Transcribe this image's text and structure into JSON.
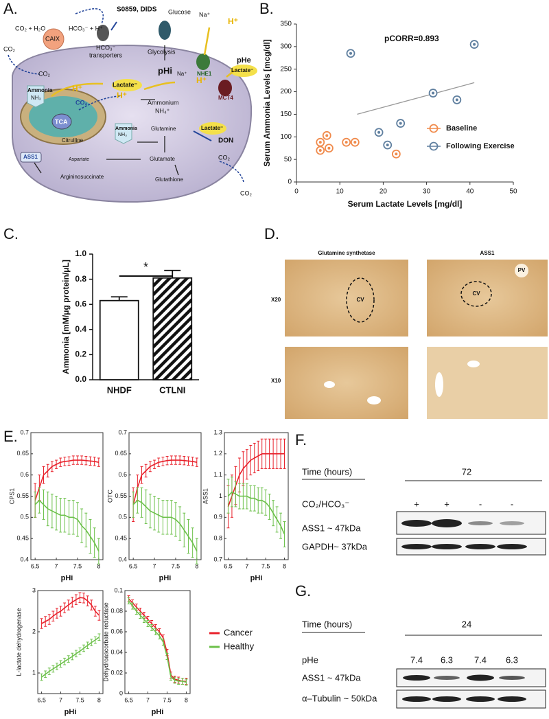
{
  "panel_a": {
    "letter": "A.",
    "labels": [
      "CO₂ + H₂O",
      "HCO₃⁻ + H⁺",
      "S0859, DIDS",
      "HCO₃⁻",
      "transporters",
      "Glucose",
      "Na⁺",
      "H⁺",
      "pHe",
      "CAIX",
      "CO₂",
      "CO₂",
      "Glycolysis",
      "Na⁺",
      "NHE1",
      "pHi",
      "Lactate⁻",
      "H⁺",
      "Ammonia",
      "NH₃",
      "H⁺",
      "Lactate⁻",
      "MCT4",
      "CO₂",
      "H⁺",
      "Ammonium",
      "NH₄⁺",
      "TCA",
      "Citrulline",
      "Ammonia",
      "NH₃",
      "Glutamine",
      "Lactate⁻",
      "DON",
      "ASS1",
      "Aspartate",
      "Glutamate",
      "Argininosuccinate",
      "Glutathione",
      "CO₂",
      "CO₂"
    ]
  },
  "panel_b": {
    "letter": "B.",
    "chart": {
      "type": "scatter",
      "xlabel": "Serum Lactate Levels [mg/dl]",
      "ylabel": "Serum Ammonia Levels [mcg/dl]",
      "annotation": "pCORR=0.893",
      "xlim": [
        0,
        50
      ],
      "xticks": [
        0,
        10,
        20,
        30,
        40,
        50
      ],
      "ylim": [
        0,
        350
      ],
      "yticks": [
        0,
        50,
        100,
        150,
        200,
        250,
        300,
        350
      ],
      "series": [
        {
          "name": "Baseline",
          "color": "#f08a4b",
          "x": [
            5.5,
            5.5,
            7,
            7.5,
            11.5,
            13.5,
            23
          ],
          "values": [
            70,
            88,
            103,
            75,
            88,
            88,
            62
          ]
        },
        {
          "name": "Following Exercise",
          "color": "#5f7f9f",
          "x": [
            12.5,
            19,
            21,
            24,
            31.5,
            37,
            41
          ],
          "values": [
            285,
            110,
            82,
            130,
            197,
            182,
            305
          ]
        }
      ],
      "trendline": {
        "x": [
          14,
          41
        ],
        "values": [
          150,
          220
        ]
      }
    }
  },
  "panel_c": {
    "letter": "C.",
    "chart": {
      "type": "bar",
      "ylabel": "Ammonia [mM/μg protein/μL]",
      "categories": [
        "NHDF",
        "CTLNI"
      ],
      "values": [
        0.63,
        0.81
      ],
      "errors": [
        0.03,
        0.06
      ],
      "ylim": [
        0,
        1
      ],
      "yticks": [
        {
          "value": 0,
          "label": "0.0"
        },
        0.2,
        0.4,
        0.6,
        0.8,
        {
          "value": 1,
          "label": "1.0"
        }
      ],
      "significance": "*"
    }
  },
  "panel_d": {
    "letter": "D.",
    "column_headers": [
      "Glutamine synthetase",
      "ASS1"
    ],
    "row_labels": [
      "X20",
      "X10"
    ],
    "image_labels": [
      "CV",
      "CV",
      "PV"
    ]
  },
  "panel_e": {
    "letter": "E.",
    "legend": [
      {
        "name": "Cancer",
        "color": "#e8202a"
      },
      {
        "name": "Healthy",
        "color": "#6cc04a"
      }
    ],
    "charts": [
      {
        "type": "line",
        "ylabel": "CPS1",
        "xlabel": "pHi",
        "x": [
          6.5,
          6.6,
          6.7,
          6.8,
          6.9,
          7.0,
          7.1,
          7.2,
          7.3,
          7.4,
          7.5,
          7.6,
          7.7,
          7.8,
          7.9,
          8.0
        ],
        "xlim": [
          6.4,
          8.1
        ],
        "xticks": [
          6.5,
          7,
          7.5,
          8
        ],
        "ylim": [
          0.4,
          0.7
        ],
        "yticks": [
          0.4,
          0.45,
          0.5,
          0.55,
          0.6,
          0.65,
          0.7
        ],
        "series": [
          {
            "values": [
              0.54,
              0.57,
              0.6,
              0.61,
              0.62,
              0.625,
              0.63,
              0.632,
              0.633,
              0.635,
              0.635,
              0.635,
              0.634,
              0.633,
              0.632,
              0.63
            ],
            "errors": [
              0.04,
              0.03,
              0.02,
              0.015,
              0.012,
              0.01,
              0.01,
              0.01,
              0.01,
              0.01,
              0.01,
              0.01,
              0.01,
              0.01,
              0.01,
              0.01
            ]
          },
          {
            "values": [
              0.53,
              0.54,
              0.53,
              0.52,
              0.515,
              0.51,
              0.505,
              0.505,
              0.5,
              0.5,
              0.495,
              0.48,
              0.47,
              0.455,
              0.44,
              0.42
            ],
            "errors": [
              0.03,
              0.03,
              0.035,
              0.04,
              0.04,
              0.04,
              0.04,
              0.04,
              0.04,
              0.04,
              0.04,
              0.04,
              0.04,
              0.04,
              0.035,
              0.03
            ]
          }
        ]
      },
      {
        "type": "line",
        "ylabel": "OTC",
        "xlabel": "pHi",
        "x": [
          6.5,
          6.6,
          6.7,
          6.8,
          6.9,
          7.0,
          7.1,
          7.2,
          7.3,
          7.4,
          7.5,
          7.6,
          7.7,
          7.8,
          7.9,
          8.0
        ],
        "xlim": [
          6.4,
          8.1
        ],
        "xticks": [
          6.5,
          7,
          7.5,
          8
        ],
        "ylim": [
          0.4,
          0.7
        ],
        "yticks": [
          0.4,
          0.45,
          0.5,
          0.55,
          0.6,
          0.65,
          0.7
        ],
        "series": [
          {
            "values": [
              0.53,
              0.57,
              0.6,
              0.61,
              0.62,
              0.625,
              0.63,
              0.632,
              0.634,
              0.635,
              0.635,
              0.635,
              0.634,
              0.633,
              0.632,
              0.63
            ],
            "errors": [
              0.04,
              0.03,
              0.02,
              0.015,
              0.012,
              0.01,
              0.01,
              0.01,
              0.01,
              0.01,
              0.01,
              0.01,
              0.01,
              0.01,
              0.01,
              0.01
            ]
          },
          {
            "values": [
              0.53,
              0.54,
              0.535,
              0.525,
              0.515,
              0.51,
              0.505,
              0.5,
              0.5,
              0.5,
              0.495,
              0.485,
              0.47,
              0.455,
              0.44,
              0.42
            ],
            "errors": [
              0.03,
              0.03,
              0.035,
              0.04,
              0.04,
              0.04,
              0.04,
              0.04,
              0.04,
              0.04,
              0.04,
              0.04,
              0.04,
              0.04,
              0.035,
              0.03
            ]
          }
        ]
      },
      {
        "type": "line",
        "ylabel": "ASS1",
        "xlabel": "pHi",
        "x": [
          6.5,
          6.6,
          6.7,
          6.8,
          6.9,
          7.0,
          7.1,
          7.2,
          7.3,
          7.4,
          7.5,
          7.6,
          7.7,
          7.8,
          7.9,
          8.0
        ],
        "xlim": [
          6.4,
          8.1
        ],
        "xticks": [
          6.5,
          7,
          7.5,
          8
        ],
        "ylim": [
          0.7,
          1.3
        ],
        "yticks": [
          0.7,
          0.8,
          0.9,
          1,
          1.1,
          1.2,
          1.3
        ],
        "series": [
          {
            "values": [
              0.95,
              1.0,
              1.05,
              1.1,
              1.13,
              1.15,
              1.17,
              1.18,
              1.19,
              1.2,
              1.2,
              1.2,
              1.2,
              1.2,
              1.2,
              1.2
            ],
            "errors": [
              0.1,
              0.1,
              0.09,
              0.08,
              0.08,
              0.07,
              0.07,
              0.07,
              0.07,
              0.07,
              0.07,
              0.07,
              0.07,
              0.07,
              0.07,
              0.07
            ]
          },
          {
            "values": [
              1.0,
              1.02,
              1.01,
              1.0,
              1.0,
              1.0,
              0.99,
              0.99,
              0.98,
              0.98,
              0.97,
              0.95,
              0.92,
              0.89,
              0.86,
              0.82
            ],
            "errors": [
              0.08,
              0.07,
              0.06,
              0.06,
              0.06,
              0.06,
              0.06,
              0.06,
              0.06,
              0.06,
              0.06,
              0.06,
              0.06,
              0.06,
              0.06,
              0.06
            ]
          }
        ]
      },
      {
        "type": "line",
        "ylabel": "L-lactate dehydrogenase",
        "xlabel": "pHi",
        "x": [
          6.5,
          6.6,
          6.7,
          6.8,
          6.9,
          7.0,
          7.1,
          7.2,
          7.3,
          7.4,
          7.5,
          7.6,
          7.7,
          7.8,
          7.9,
          8.0
        ],
        "xlim": [
          6.4,
          8.1
        ],
        "xticks": [
          6.5,
          7,
          7.5,
          8
        ],
        "ylim": [
          0.5,
          3
        ],
        "yticks": [
          1,
          2,
          3
        ],
        "series": [
          {
            "values": [
              2.2,
              2.25,
              2.3,
              2.38,
              2.45,
              2.5,
              2.58,
              2.65,
              2.72,
              2.78,
              2.83,
              2.82,
              2.75,
              2.65,
              2.5,
              2.4
            ],
            "errors": [
              0.12,
              0.12,
              0.12,
              0.12,
              0.12,
              0.12,
              0.12,
              0.12,
              0.12,
              0.12,
              0.12,
              0.12,
              0.12,
              0.12,
              0.12,
              0.12
            ]
          },
          {
            "values": [
              0.9,
              0.97,
              1.04,
              1.1,
              1.16,
              1.22,
              1.28,
              1.34,
              1.4,
              1.47,
              1.53,
              1.6,
              1.67,
              1.74,
              1.8,
              1.87
            ],
            "errors": [
              0.08,
              0.08,
              0.08,
              0.08,
              0.08,
              0.08,
              0.08,
              0.08,
              0.08,
              0.08,
              0.08,
              0.08,
              0.08,
              0.08,
              0.08,
              0.08
            ]
          }
        ]
      },
      {
        "type": "line",
        "ylabel": "Dehydroascorbate reductase",
        "xlabel": "pHi",
        "x": [
          6.5,
          6.6,
          6.7,
          6.8,
          6.9,
          7.0,
          7.1,
          7.2,
          7.3,
          7.4,
          7.5,
          7.6,
          7.7,
          7.8,
          7.9,
          8.0
        ],
        "xlim": [
          6.4,
          8.1
        ],
        "xticks": [
          6.5,
          7,
          7.5,
          8
        ],
        "ylim": [
          0,
          0.1
        ],
        "yticks": [
          0,
          0.02,
          0.04,
          0.06,
          0.08,
          0.1
        ],
        "series": [
          {
            "values": [
              0.092,
              0.088,
              0.084,
              0.08,
              0.076,
              0.072,
              0.068,
              0.064,
              0.06,
              0.054,
              0.04,
              0.018,
              0.014,
              0.013,
              0.012,
              0.012
            ],
            "errors": [
              0.003,
              0.003,
              0.003,
              0.003,
              0.003,
              0.003,
              0.003,
              0.003,
              0.003,
              0.003,
              0.003,
              0.003,
              0.003,
              0.003,
              0.003,
              0.003
            ]
          },
          {
            "values": [
              0.09,
              0.085,
              0.08,
              0.076,
              0.072,
              0.068,
              0.064,
              0.06,
              0.056,
              0.05,
              0.036,
              0.016,
              0.013,
              0.012,
              0.012,
              0.011
            ],
            "errors": [
              0.003,
              0.003,
              0.003,
              0.003,
              0.003,
              0.003,
              0.003,
              0.003,
              0.003,
              0.003,
              0.003,
              0.003,
              0.003,
              0.003,
              0.003,
              0.003
            ]
          }
        ]
      }
    ]
  },
  "panel_f": {
    "letter": "F.",
    "time_label": "Time (hours)",
    "time": 72,
    "condition_label": "CO₂/HCO₃⁻",
    "conditions": [
      "+",
      "+",
      "-",
      "-"
    ],
    "bands": [
      "ASS1 ~ 47kDa",
      "GAPDH~ 37kDa"
    ]
  },
  "panel_g": {
    "letter": "G.",
    "time_label": "Time (hours)",
    "time": 24,
    "condition_label": "pHe",
    "conditions": [
      7.4,
      6.3,
      7.4,
      6.3
    ],
    "bands": [
      "ASS1 ~ 47kDa",
      "α–Tubulin ~ 50kDa"
    ]
  }
}
